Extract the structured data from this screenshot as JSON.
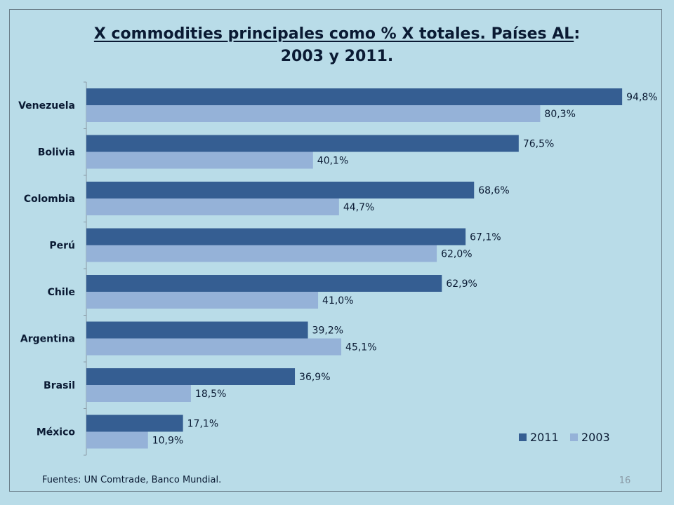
{
  "title": {
    "line1_underlined": "X commodities principales como % X totales. Países AL",
    "line1_suffix": ":",
    "line2": "2003 y 2011."
  },
  "source_text": "Fuentes: UN Comtrade, Banco Mundial.",
  "page_number": "16",
  "colors": {
    "background": "#b9dce8",
    "series_2011": "#355e92",
    "series_2003": "#95b2d8",
    "axis": "#8a9aa6",
    "text": "#0a1a33"
  },
  "chart_data": {
    "type": "bar",
    "orientation": "horizontal",
    "categories": [
      "Venezuela",
      "Bolivia",
      "Colombia",
      "Perú",
      "Chile",
      "Argentina",
      "Brasil",
      "México"
    ],
    "series": [
      {
        "name": "2011",
        "values": [
          94.8,
          76.5,
          68.6,
          67.1,
          62.9,
          39.2,
          36.9,
          17.1
        ],
        "labels": [
          "94,8%",
          "76,5%",
          "68,6%",
          "67,1%",
          "62,9%",
          "39,2%",
          "36,9%",
          "17,1%"
        ]
      },
      {
        "name": "2003",
        "values": [
          80.3,
          40.1,
          44.7,
          62.0,
          41.0,
          45.1,
          18.5,
          10.9
        ],
        "labels": [
          "80,3%",
          "40,1%",
          "44,7%",
          "62,0%",
          "41,0%",
          "45,1%",
          "18,5%",
          "10,9%"
        ]
      }
    ],
    "xlim": [
      0,
      100
    ],
    "grid": false,
    "legend_placement": "bottom-right"
  }
}
